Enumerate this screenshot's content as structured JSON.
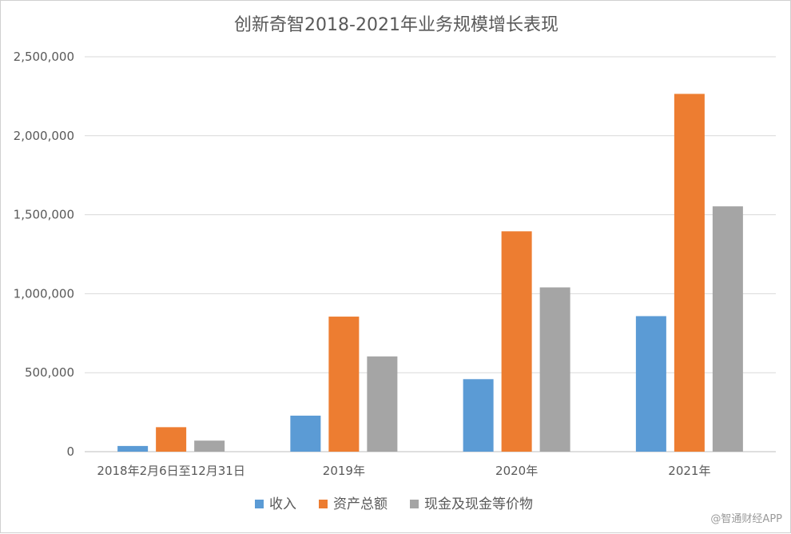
{
  "chart_data": {
    "type": "bar",
    "title": "创新奇智2018-2021年业务规模增长表现",
    "categories": [
      "2018年2月6日至12月31日",
      "2019年",
      "2020年",
      "2021年"
    ],
    "series": [
      {
        "name": "收入",
        "color": "#5b9bd5",
        "values": [
          36000,
          228000,
          459000,
          858000
        ]
      },
      {
        "name": "资产总额",
        "color": "#ed7d31",
        "values": [
          155000,
          855000,
          1395000,
          2265000
        ]
      },
      {
        "name": "现金及现金等价物",
        "color": "#a5a5a5",
        "values": [
          70000,
          603000,
          1040000,
          1553000
        ]
      }
    ],
    "ylim": [
      0,
      2500000
    ],
    "yticks": [
      0,
      500000,
      1000000,
      1500000,
      2000000,
      2500000
    ],
    "ytick_labels": [
      "0",
      "500,000",
      "1,000,000",
      "1,500,000",
      "2,000,000",
      "2,500,000"
    ],
    "grid": true,
    "legend_position": "bottom"
  },
  "watermark": "@智通财经APP"
}
